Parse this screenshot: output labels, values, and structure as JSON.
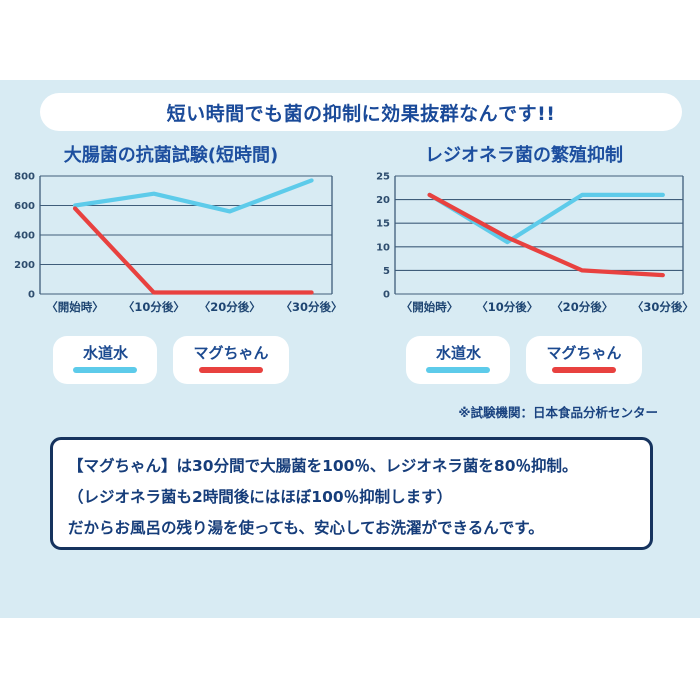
{
  "header": {
    "title": "短い時間でも菌の抑制に効果抜群なんです!!"
  },
  "colors": {
    "panel_bg": "#d8ebf3",
    "accent_blue": "#1d4f9f",
    "navy_border": "#16335e",
    "line_blue": "#5dcbea",
    "line_red": "#e8413f",
    "grid": "#3f5d7a"
  },
  "legend": {
    "water_label": "水道水",
    "mag_label": "マグちゃん"
  },
  "note": "※試験機関：日本食品分析センター",
  "info_box": {
    "lines": [
      "【マグちゃん】は30分間で大腸菌を100％、レジオネラ菌を80％抑制。",
      "（レジオネラ菌も2時間後にはほぼ100％抑制します）",
      "だからお風呂の残り湯を使っても、安心してお洗濯ができるんです。"
    ]
  },
  "chart_data": [
    {
      "type": "line",
      "title": "大腸菌の抗菌試験(短時間)",
      "categories": [
        "〈開始時〉",
        "〈10分後〉",
        "〈20分後〉",
        "〈30分後〉"
      ],
      "series": [
        {
          "name": "水道水",
          "color": "#5dcbea",
          "values": [
            600,
            680,
            560,
            770
          ]
        },
        {
          "name": "マグちゃん",
          "color": "#e8413f",
          "values": [
            580,
            10,
            10,
            10
          ]
        }
      ],
      "ylim": [
        0,
        800
      ],
      "yticks": [
        0,
        200,
        400,
        600,
        800
      ],
      "grid": true,
      "legend_position": "below"
    },
    {
      "type": "line",
      "title": "レジオネラ菌の繁殖抑制",
      "categories": [
        "〈開始時〉",
        "〈10分後〉",
        "〈20分後〉",
        "〈30分後〉"
      ],
      "series": [
        {
          "name": "水道水",
          "color": "#5dcbea",
          "values": [
            21,
            11,
            21,
            21
          ]
        },
        {
          "name": "マグちゃん",
          "color": "#e8413f",
          "values": [
            21,
            12,
            5,
            4
          ]
        }
      ],
      "ylim": [
        0,
        25
      ],
      "yticks": [
        0,
        5,
        10,
        15,
        20,
        25
      ],
      "grid": true,
      "legend_position": "below"
    }
  ]
}
